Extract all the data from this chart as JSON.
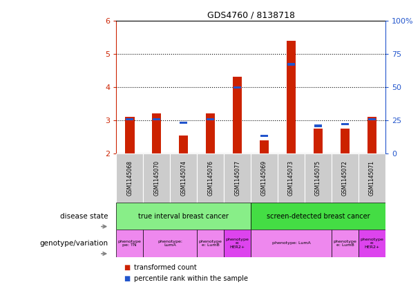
{
  "title": "GDS4760 / 8138718",
  "samples": [
    "GSM1145068",
    "GSM1145070",
    "GSM1145074",
    "GSM1145076",
    "GSM1145077",
    "GSM1145069",
    "GSM1145073",
    "GSM1145075",
    "GSM1145072",
    "GSM1145071"
  ],
  "red_values": [
    3.1,
    3.2,
    2.55,
    3.2,
    4.3,
    2.4,
    5.4,
    2.75,
    2.75,
    3.1
  ],
  "blue_values": [
    3.0,
    3.0,
    2.9,
    3.0,
    3.95,
    2.5,
    4.65,
    2.8,
    2.85,
    3.0
  ],
  "ylim": [
    2.0,
    6.0
  ],
  "yticks_left": [
    2,
    3,
    4,
    5,
    6
  ],
  "yticks_right": [
    0,
    25,
    50,
    75,
    100
  ],
  "bar_base": 2.0,
  "bar_width": 0.35,
  "red_color": "#cc2200",
  "blue_color": "#2255cc",
  "bg_color": "#ffffff",
  "plot_bg": "#ffffff",
  "axis_color_left": "#cc2200",
  "axis_color_right": "#2255cc",
  "sample_box_color": "#cccccc",
  "disease_colors": [
    "#88ee88",
    "#44dd44"
  ],
  "disease_labels": [
    "true interval breast cancer",
    "screen-detected breast cancer"
  ],
  "disease_ranges": [
    [
      0,
      5
    ],
    [
      5,
      10
    ]
  ],
  "genotype_data": [
    {
      "label": "phenotype\npe: TN",
      "start": 0,
      "end": 1,
      "color": "#ee88ee"
    },
    {
      "label": "phenotype:\nLumA",
      "start": 1,
      "end": 3,
      "color": "#ee88ee"
    },
    {
      "label": "phenotype\ne: LumB",
      "start": 3,
      "end": 4,
      "color": "#ee88ee"
    },
    {
      "label": "phenotype\ne:\nHER2+",
      "start": 4,
      "end": 5,
      "color": "#dd44ee"
    },
    {
      "label": "phenotype: LumA",
      "start": 5,
      "end": 8,
      "color": "#ee88ee"
    },
    {
      "label": "phenotype\ne: LumB",
      "start": 8,
      "end": 9,
      "color": "#ee88ee"
    },
    {
      "label": "phenotype\ne:\nHER2+",
      "start": 9,
      "end": 10,
      "color": "#dd44ee"
    }
  ],
  "left_labels": [
    "disease state",
    "genotype/variation"
  ],
  "legend_labels": [
    "transformed count",
    "percentile rank within the sample"
  ]
}
